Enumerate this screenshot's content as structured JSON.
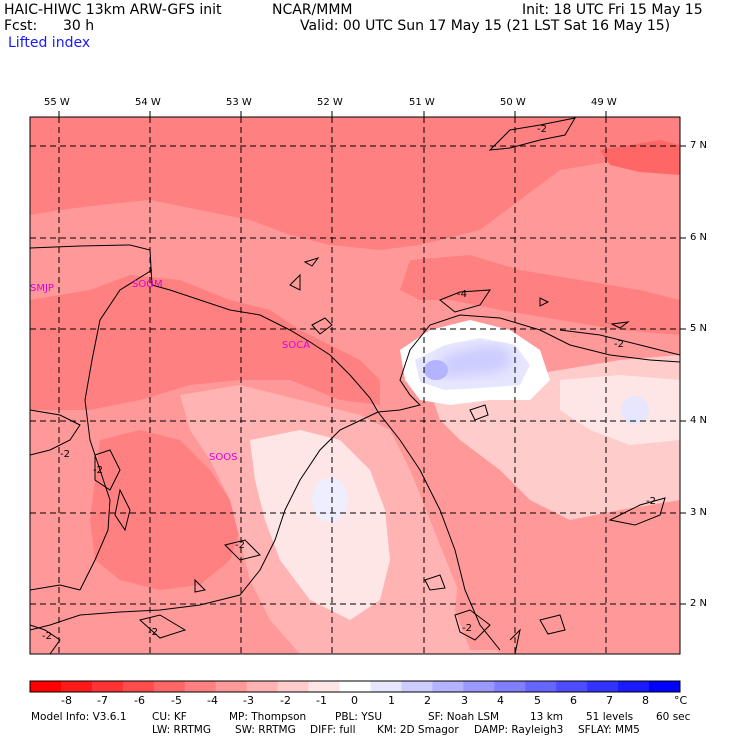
{
  "header": {
    "model_title": "HAIC-HIWC 13km ARW-GFS init",
    "org": "NCAR/MMM",
    "init": "Init: 18 UTC Fri 15 May 15",
    "fcst_label": "Fcst:",
    "fcst_value": "30 h",
    "valid": "Valid: 00 UTC Sun 17 May 15 (21 LST Sat 16 May 15)",
    "field": "Lifted index"
  },
  "map": {
    "lon_labels": [
      "55 W",
      "54 W",
      "53 W",
      "52 W",
      "51 W",
      "50 W",
      "49 W"
    ],
    "lat_labels": [
      "7 N",
      "6 N",
      "5 N",
      "4 N",
      "3 N",
      "2 N"
    ],
    "stations": [
      "SMJP",
      "SOGM",
      "SOCA",
      "SOOS"
    ],
    "contour_labels": [
      "-2",
      "-4",
      "-2",
      "-2",
      "-2",
      "-2",
      "-2",
      "-2",
      "-2",
      "-2"
    ]
  },
  "colorbar": {
    "ticks": [
      "-8",
      "-7",
      "-6",
      "-5",
      "-4",
      "-3",
      "-2",
      "-1",
      "0",
      "1",
      "2",
      "3",
      "4",
      "5",
      "6",
      "7",
      "8"
    ],
    "unit": "°C",
    "colors": [
      "#ff0000",
      "#ff1a1a",
      "#ff3333",
      "#ff4d4d",
      "#ff6666",
      "#ff8080",
      "#ff9999",
      "#ffb3b3",
      "#ffcccc",
      "#ffe6e6",
      "#ffffff",
      "#e6e6ff",
      "#ccccff",
      "#b3b3ff",
      "#9999ff",
      "#8080ff",
      "#6666ff",
      "#4d4dff",
      "#3333ff",
      "#1a1aff",
      "#0000ff"
    ]
  },
  "footer": {
    "line1": [
      "Model Info: V3.6.1",
      "CU: KF",
      "MP: Thompson",
      "PBL: YSU",
      "SF: Noah LSM",
      "13 km",
      "51 levels",
      "60 sec"
    ],
    "line2": [
      "LW: RRTMG",
      "SW: RRTMG",
      "DIFF: full",
      "KM: 2D Smagor",
      "DAMP: Rayleigh3",
      "SFLAY: MM5"
    ]
  }
}
